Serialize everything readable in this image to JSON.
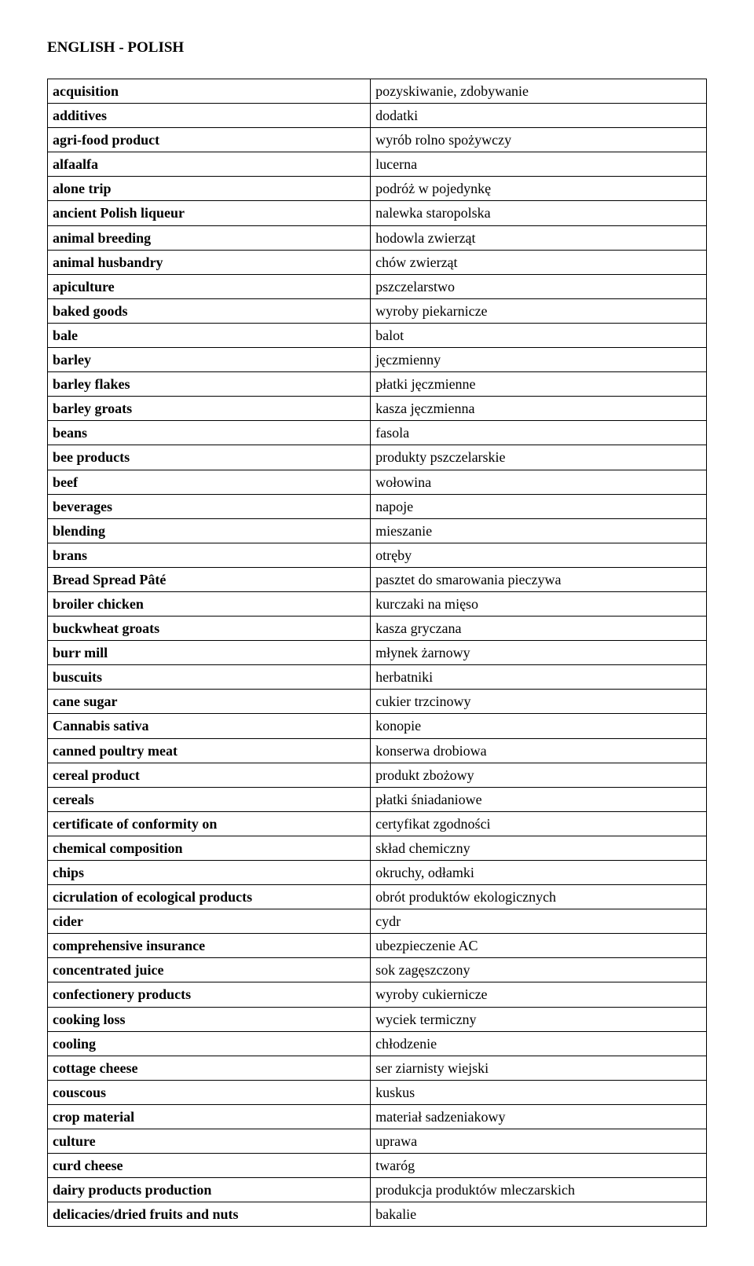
{
  "title": "ENGLISH - POLISH",
  "rows": [
    {
      "en": "acquisition",
      "pl": "pozyskiwanie, zdobywanie"
    },
    {
      "en": "additives",
      "pl": "dodatki"
    },
    {
      "en": "agri-food product",
      "pl": "wyrób rolno spożywczy"
    },
    {
      "en": "alfaalfa",
      "pl": "lucerna"
    },
    {
      "en": "alone trip",
      "pl": "podróż w pojedynkę"
    },
    {
      "en": "ancient Polish liqueur",
      "pl": "nalewka staropolska"
    },
    {
      "en": "animal breeding",
      "pl": "hodowla zwierząt"
    },
    {
      "en": "animal husbandry",
      "pl": "chów zwierząt"
    },
    {
      "en": "apiculture",
      "pl": "pszczelarstwo"
    },
    {
      "en": "baked goods",
      "pl": "wyroby piekarnicze"
    },
    {
      "en": "bale",
      "pl": "balot"
    },
    {
      "en": "barley",
      "pl": "jęczmienny"
    },
    {
      "en": "barley flakes",
      "pl": "płatki jęczmienne"
    },
    {
      "en": "barley groats",
      "pl": "kasza jęczmienna"
    },
    {
      "en": "beans",
      "pl": "fasola"
    },
    {
      "en": "bee products",
      "pl": "produkty pszczelarskie"
    },
    {
      "en": "beef",
      "pl": "wołowina"
    },
    {
      "en": "beverages",
      "pl": "napoje"
    },
    {
      "en": "blending",
      "pl": "mieszanie"
    },
    {
      "en": "brans",
      "pl": "otręby"
    },
    {
      "en": "Bread Spread Pâté",
      "pl": "pasztet do smarowania pieczywa"
    },
    {
      "en": "broiler chicken",
      "pl": "kurczaki na mięso"
    },
    {
      "en": "buckwheat groats",
      "pl": "kasza gryczana"
    },
    {
      "en": "burr mill",
      "pl": "młynek żarnowy"
    },
    {
      "en": "buscuits",
      "pl": "herbatniki"
    },
    {
      "en": "cane sugar",
      "pl": "cukier trzcinowy"
    },
    {
      "en": "Cannabis sativa",
      "pl": "konopie"
    },
    {
      "en": "canned poultry meat",
      "pl": "konserwa drobiowa"
    },
    {
      "en": "cereal product",
      "pl": "produkt zbożowy"
    },
    {
      "en": "cereals",
      "pl": "płatki śniadaniowe"
    },
    {
      "en": "certificate of conformity on",
      "pl": "certyfikat zgodności"
    },
    {
      "en": "chemical composition",
      "pl": "skład chemiczny"
    },
    {
      "en": "chips",
      "pl": "okruchy, odłamki"
    },
    {
      "en": "cicrulation of ecological products",
      "pl": "obrót produktów ekologicznych"
    },
    {
      "en": "cider",
      "pl": "cydr"
    },
    {
      "en": "comprehensive insurance",
      "pl": "ubezpieczenie AC"
    },
    {
      "en": "concentrated juice",
      "pl": "sok zagęszczony"
    },
    {
      "en": "confectionery products",
      "pl": "wyroby cukiernicze"
    },
    {
      "en": "cooking loss",
      "pl": "wyciek termiczny"
    },
    {
      "en": "cooling",
      "pl": "chłodzenie"
    },
    {
      "en": "cottage cheese",
      "pl": "ser ziarnisty wiejski"
    },
    {
      "en": "couscous",
      "pl": "kuskus"
    },
    {
      "en": "crop material",
      "pl": "materiał sadzeniakowy"
    },
    {
      "en": "culture",
      "pl": "uprawa"
    },
    {
      "en": "curd cheese",
      "pl": "twaróg"
    },
    {
      "en": "dairy products production",
      "pl": "produkcja produktów mleczarskich"
    },
    {
      "en": "delicacies/dried fruits and nuts",
      "pl": "bakalie"
    }
  ]
}
